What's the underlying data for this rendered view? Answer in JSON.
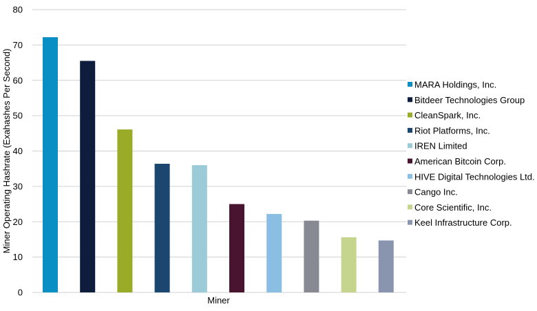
{
  "chart_data": {
    "type": "bar",
    "xlabel": "Miner",
    "ylabel": "Miner Operating Hashrate (Exahashes Per Second)",
    "ylim": [
      0,
      80
    ],
    "yticks": [
      0,
      10,
      20,
      30,
      40,
      50,
      60,
      70,
      80
    ],
    "grid": true,
    "legend_position": "right",
    "series": [
      {
        "name": "MARA Holdings, Inc.",
        "value": 72.2,
        "color": "#0a8fc4"
      },
      {
        "name": "Bitdeer Technologies Group",
        "value": 65.5,
        "color": "#0e1c3d"
      },
      {
        "name": "CleanSpark, Inc.",
        "value": 46.1,
        "color": "#9aab27"
      },
      {
        "name": "Riot Platforms, Inc.",
        "value": 36.4,
        "color": "#1b466f"
      },
      {
        "name": "IREN Limited",
        "value": 36.0,
        "color": "#9ccbd8"
      },
      {
        "name": "American Bitcoin Corp.",
        "value": 25.0,
        "color": "#48142f"
      },
      {
        "name": "HIVE Digital Technologies Ltd.",
        "value": 22.2,
        "color": "#8abfe3"
      },
      {
        "name": "Cango Inc.",
        "value": 20.3,
        "color": "#878a93"
      },
      {
        "name": "Core Scientific, Inc.",
        "value": 15.6,
        "color": "#c6d58d"
      },
      {
        "name": "Keel Infrastructure Corp.",
        "value": 14.7,
        "color": "#8995ae"
      }
    ]
  }
}
